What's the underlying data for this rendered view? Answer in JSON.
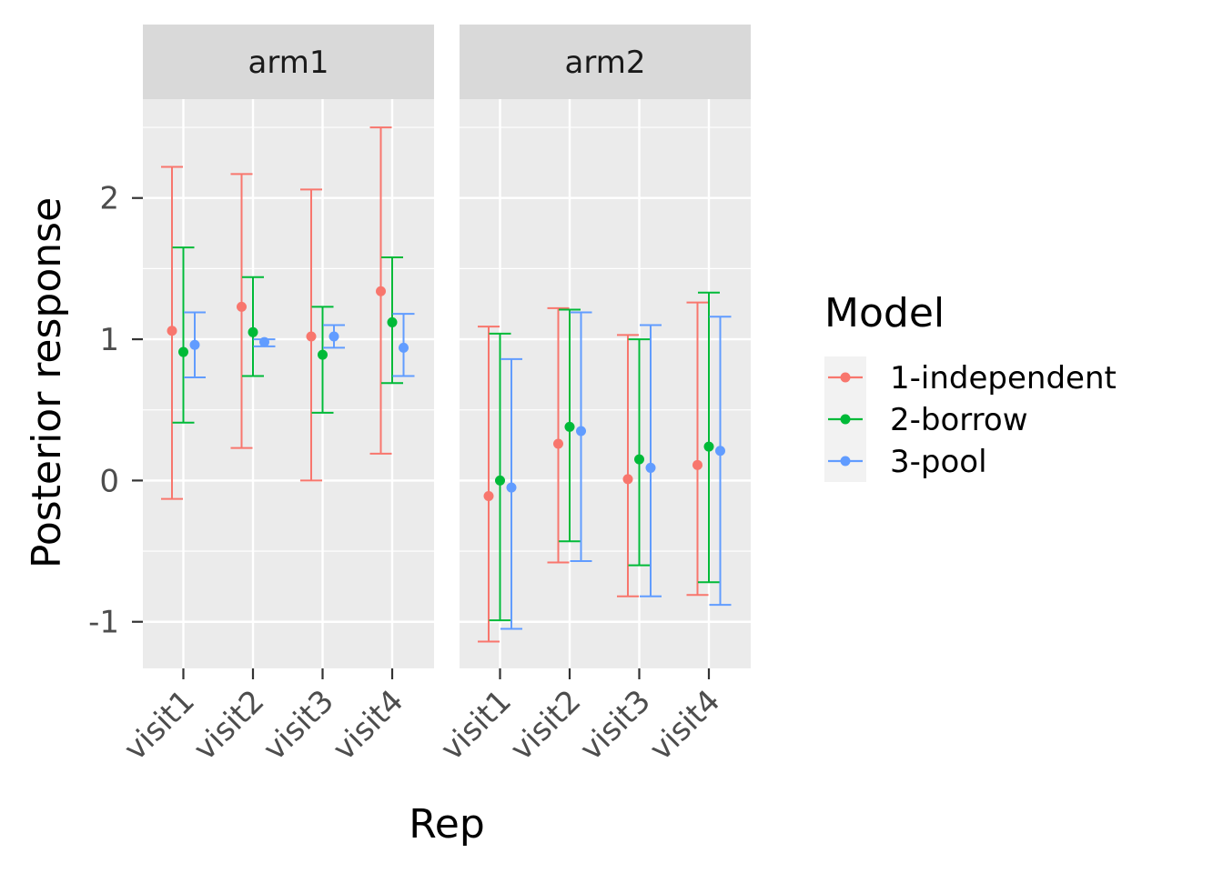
{
  "chart_data": {
    "type": "errorbar",
    "xlabel": "Rep",
    "ylabel": "Posterior response",
    "ylim": [
      -1.33,
      2.7
    ],
    "y_ticks": [
      -1,
      0,
      1,
      2
    ],
    "y_tick_labels": [
      "-1",
      "0",
      "1",
      "2"
    ],
    "categories": [
      "visit1",
      "visit2",
      "visit3",
      "visit4"
    ],
    "legend": {
      "title": "Model",
      "position": "right"
    },
    "colors": {
      "1-independent": "#F8766D",
      "2-borrow": "#00BA38",
      "3-pool": "#619CFF"
    },
    "panels": [
      {
        "name": "arm1",
        "series": [
          {
            "name": "1-independent",
            "estimate": [
              1.06,
              1.23,
              1.02,
              1.34
            ],
            "lower": [
              -0.13,
              0.23,
              0.0,
              0.19
            ],
            "upper": [
              2.22,
              2.17,
              2.06,
              2.5
            ]
          },
          {
            "name": "2-borrow",
            "estimate": [
              0.91,
              1.05,
              0.89,
              1.12
            ],
            "lower": [
              0.41,
              0.74,
              0.48,
              0.69
            ],
            "upper": [
              1.65,
              1.44,
              1.23,
              1.58
            ]
          },
          {
            "name": "3-pool",
            "estimate": [
              0.96,
              0.98,
              1.02,
              0.94
            ],
            "lower": [
              0.73,
              0.95,
              0.94,
              0.74
            ],
            "upper": [
              1.19,
              1.0,
              1.1,
              1.18
            ]
          }
        ]
      },
      {
        "name": "arm2",
        "series": [
          {
            "name": "1-independent",
            "estimate": [
              -0.11,
              0.26,
              0.01,
              0.11
            ],
            "lower": [
              -1.14,
              -0.58,
              -0.82,
              -0.81
            ],
            "upper": [
              1.09,
              1.22,
              1.03,
              1.26
            ]
          },
          {
            "name": "2-borrow",
            "estimate": [
              0.0,
              0.38,
              0.15,
              0.24
            ],
            "lower": [
              -0.99,
              -0.43,
              -0.6,
              -0.72
            ],
            "upper": [
              1.04,
              1.21,
              1.0,
              1.33
            ]
          },
          {
            "name": "3-pool",
            "estimate": [
              -0.05,
              0.35,
              0.09,
              0.21
            ],
            "lower": [
              -1.05,
              -0.57,
              -0.82,
              -0.88
            ],
            "upper": [
              0.86,
              1.19,
              1.1,
              1.16
            ]
          }
        ]
      }
    ]
  }
}
